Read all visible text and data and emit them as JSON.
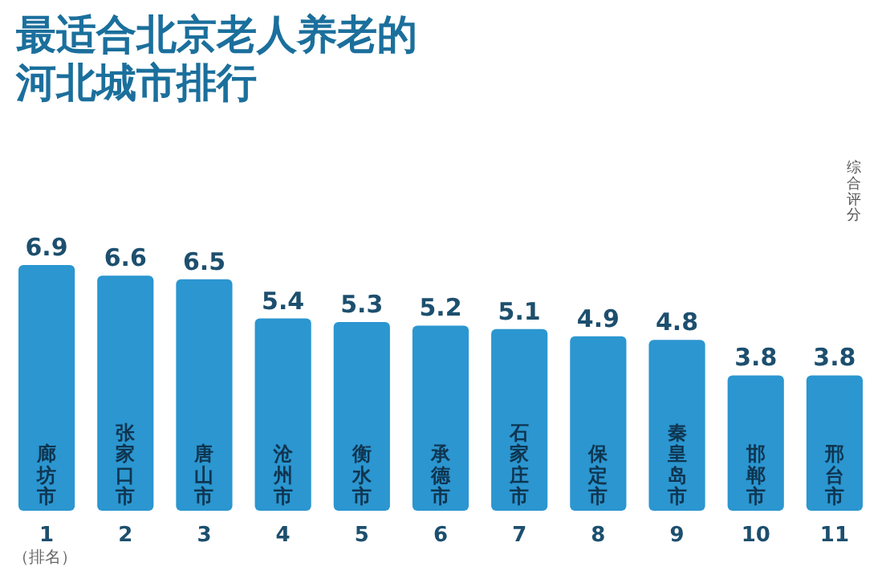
{
  "chart_data": {
    "type": "bar",
    "title": "最适合北京老人养老的河北城市排行",
    "categories": [
      "廊坊市",
      "张家口市",
      "唐山市",
      "沧州市",
      "衡水市",
      "承德市",
      "石家庄市",
      "保定市",
      "秦皇岛市",
      "邯郸市",
      "邢台市"
    ],
    "values": [
      6.9,
      6.6,
      6.5,
      5.4,
      5.3,
      5.2,
      5.1,
      4.9,
      4.8,
      3.8,
      3.8
    ],
    "color": "#2b96d0",
    "data_labels": true,
    "annotations": [
      "1",
      "2",
      "3",
      "4",
      "5",
      "6",
      "7",
      "8",
      "9",
      "10",
      "11",
      "综合评分",
      "（排名）"
    ]
  }
}
